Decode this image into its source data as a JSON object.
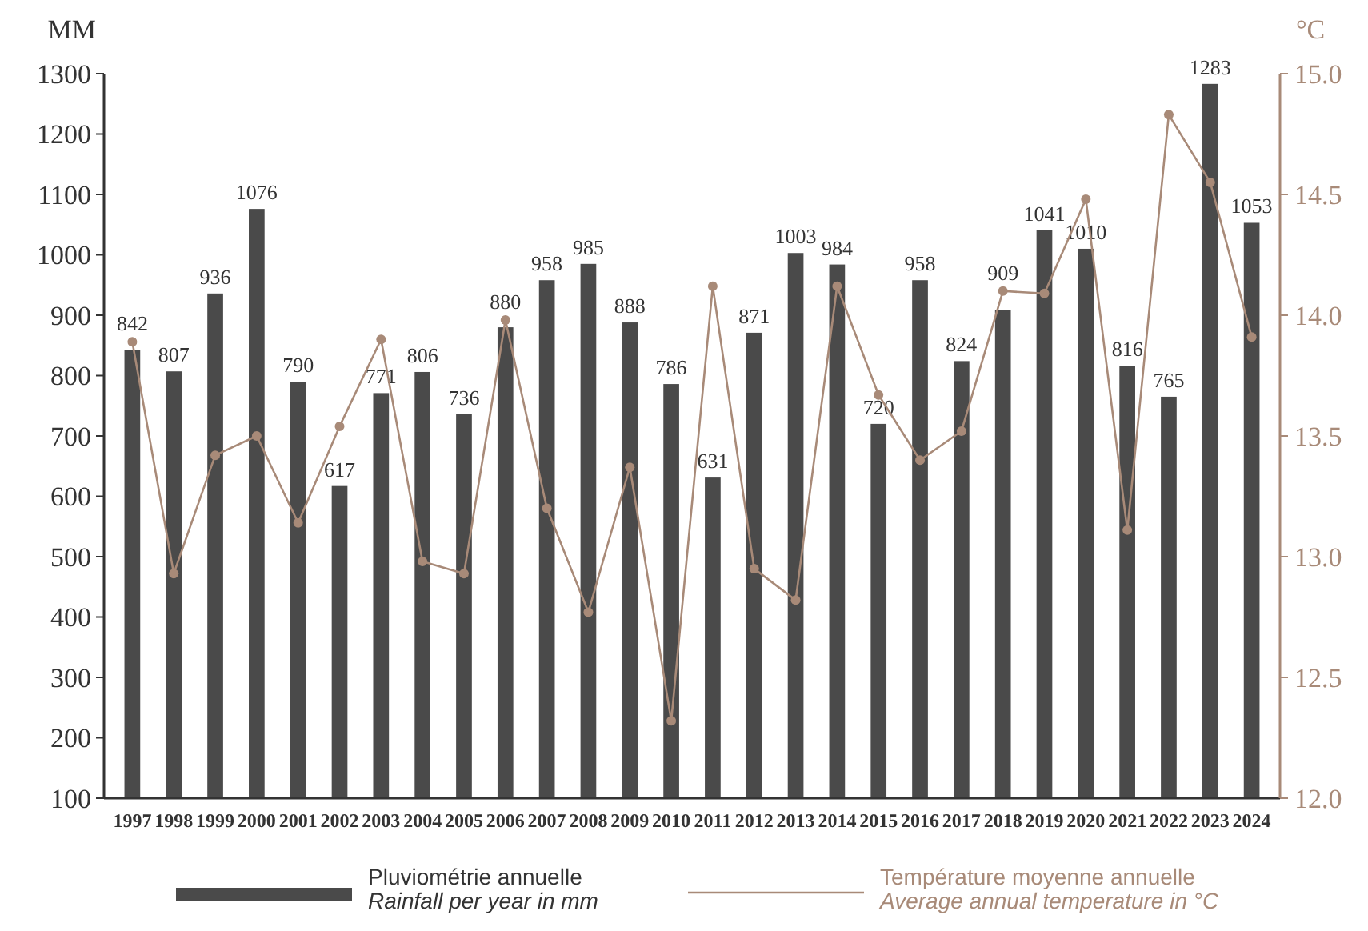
{
  "chart_data": {
    "type": "bar",
    "ylabel": "MM",
    "y2label": "°C",
    "categories": [
      "1997",
      "1998",
      "1999",
      "2000",
      "2001",
      "2002",
      "2003",
      "2004",
      "2005",
      "2006",
      "2007",
      "2008",
      "2009",
      "2010",
      "2011",
      "2012",
      "2013",
      "2014",
      "2015",
      "2016",
      "2017",
      "2018",
      "2019",
      "2020",
      "2021",
      "2022",
      "2023",
      "2024"
    ],
    "series": [
      {
        "name": "Pluviométrie annuelle\nRainfall per year in mm",
        "color": "#4a4a4a",
        "values": [
          842,
          807,
          936,
          1076,
          790,
          617,
          771,
          806,
          736,
          880,
          958,
          985,
          888,
          786,
          631,
          871,
          1003,
          984,
          720,
          958,
          824,
          909,
          1041,
          1010,
          816,
          765,
          1283,
          1053
        ],
        "value_labels": [
          "842",
          "807",
          "936",
          "1076",
          "790",
          "617",
          "771",
          "806",
          "736",
          "880",
          "958",
          "985",
          "888",
          "786",
          "631",
          "871",
          "1003",
          "984",
          "720",
          "958",
          "824",
          "909",
          "1041",
          "1010",
          "816",
          "765",
          "1283",
          "1053"
        ]
      },
      {
        "type": "line",
        "axis": "y2",
        "name": "Température moyenne annuelle\nAverage annual temperature in °C",
        "color": "#a88a78",
        "marker": "circle",
        "values": [
          13.89,
          12.93,
          13.42,
          13.5,
          13.14,
          13.54,
          13.9,
          12.98,
          12.93,
          13.98,
          13.2,
          12.77,
          13.37,
          12.32,
          14.12,
          12.95,
          12.82,
          14.12,
          13.67,
          13.4,
          13.52,
          14.1,
          14.09,
          14.48,
          13.11,
          14.83,
          14.55,
          13.91
        ]
      }
    ],
    "ylim": [
      100,
      1300
    ],
    "yticks": [
      100,
      200,
      300,
      400,
      500,
      600,
      700,
      800,
      900,
      1000,
      1100,
      1200,
      1300
    ],
    "y2lim": [
      12.0,
      15.0
    ],
    "y2ticks": [
      {
        "value": 12,
        "label": "12.0"
      },
      {
        "value": 12.5,
        "label": "12.5"
      },
      {
        "value": 13,
        "label": "13.0"
      },
      {
        "value": 13.5,
        "label": "13.5"
      },
      {
        "value": 14,
        "label": "14.0"
      },
      {
        "value": 14.5,
        "label": "14.5"
      },
      {
        "value": 15,
        "label": "15.0"
      }
    ],
    "grid": false,
    "legend": "bottom"
  }
}
